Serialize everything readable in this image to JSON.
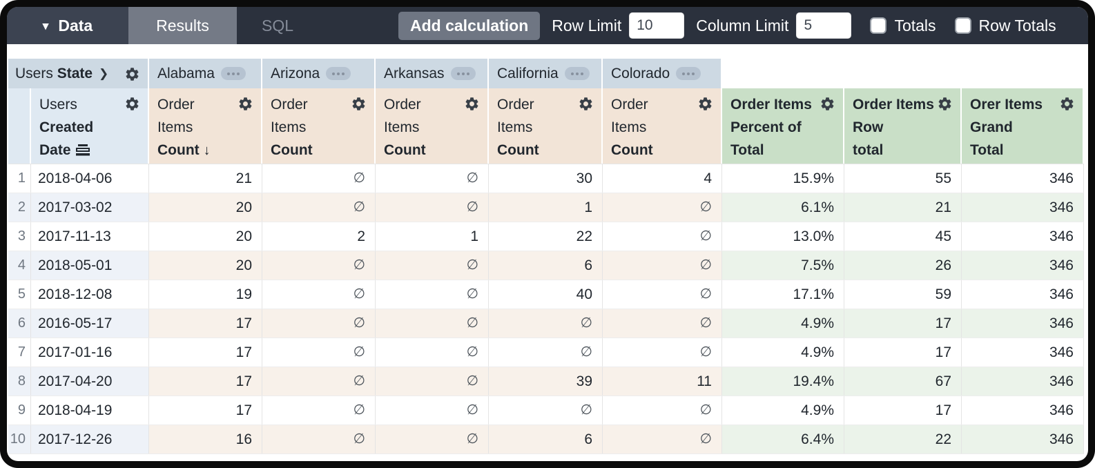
{
  "toolbar": {
    "data_tab": {
      "label": "Data"
    },
    "tabs": [
      {
        "label": "Results"
      },
      {
        "label": "SQL"
      }
    ],
    "add_calculation_label": "Add calculation",
    "row_limit": {
      "label": "Row Limit",
      "value": "10"
    },
    "column_limit": {
      "label": "Column Limit",
      "value": "5"
    },
    "totals": {
      "label": "Totals",
      "checked": false
    },
    "row_totals": {
      "label": "Row Totals",
      "checked": false
    }
  },
  "icons": {
    "caret_down": "▾",
    "chevron_right": "❯",
    "sort_desc": "↓"
  },
  "pivot": {
    "field_name": "Users",
    "field_name_bold": "State",
    "states": [
      "Alabama",
      "Arizona",
      "Arkansas",
      "California",
      "Colorado"
    ]
  },
  "row_field_header": {
    "line1": "Users",
    "line2": "Created",
    "line3": "Date"
  },
  "measure_header": {
    "line1": "Order",
    "line2": "Items",
    "line3": "Count"
  },
  "calc_headers": [
    {
      "line1": "Order Items",
      "line2": "Percent of",
      "line3": "Total"
    },
    {
      "line1": "Order Items",
      "line2": "Row",
      "line3": "total"
    },
    {
      "line1": "Orer Items",
      "line2": "Grand",
      "line3": "Total"
    }
  ],
  "table": {
    "null_symbol": "∅",
    "rows": [
      [
        "1",
        "2018-04-06",
        "21",
        "∅",
        "∅",
        "30",
        "4",
        "15.9%",
        "55",
        "346"
      ],
      [
        "2",
        "2017-03-02",
        "20",
        "∅",
        "∅",
        "1",
        "∅",
        "6.1%",
        "21",
        "346"
      ],
      [
        "3",
        "2017-11-13",
        "20",
        "2",
        "1",
        "22",
        "∅",
        "13.0%",
        "45",
        "346"
      ],
      [
        "4",
        "2018-05-01",
        "20",
        "∅",
        "∅",
        "6",
        "∅",
        "7.5%",
        "26",
        "346"
      ],
      [
        "5",
        "2018-12-08",
        "19",
        "∅",
        "∅",
        "40",
        "∅",
        "17.1%",
        "59",
        "346"
      ],
      [
        "6",
        "2016-05-17",
        "17",
        "∅",
        "∅",
        "∅",
        "∅",
        "4.9%",
        "17",
        "346"
      ],
      [
        "7",
        "2017-01-16",
        "17",
        "∅",
        "∅",
        "∅",
        "∅",
        "4.9%",
        "17",
        "346"
      ],
      [
        "8",
        "2017-04-20",
        "17",
        "∅",
        "∅",
        "39",
        "11",
        "19.4%",
        "67",
        "346"
      ],
      [
        "9",
        "2018-04-19",
        "17",
        "∅",
        "∅",
        "∅",
        "∅",
        "4.9%",
        "17",
        "346"
      ],
      [
        "10",
        "2017-12-26",
        "16",
        "∅",
        "∅",
        "6",
        "∅",
        "6.4%",
        "22",
        "346"
      ]
    ]
  },
  "colors": {
    "topbar": "#2b313d",
    "pivot_header": "#cdd9e3",
    "dimension_header": "#dfe9f2",
    "measure_header": "#f2e4d7",
    "calc_header": "#c9dfc7"
  }
}
